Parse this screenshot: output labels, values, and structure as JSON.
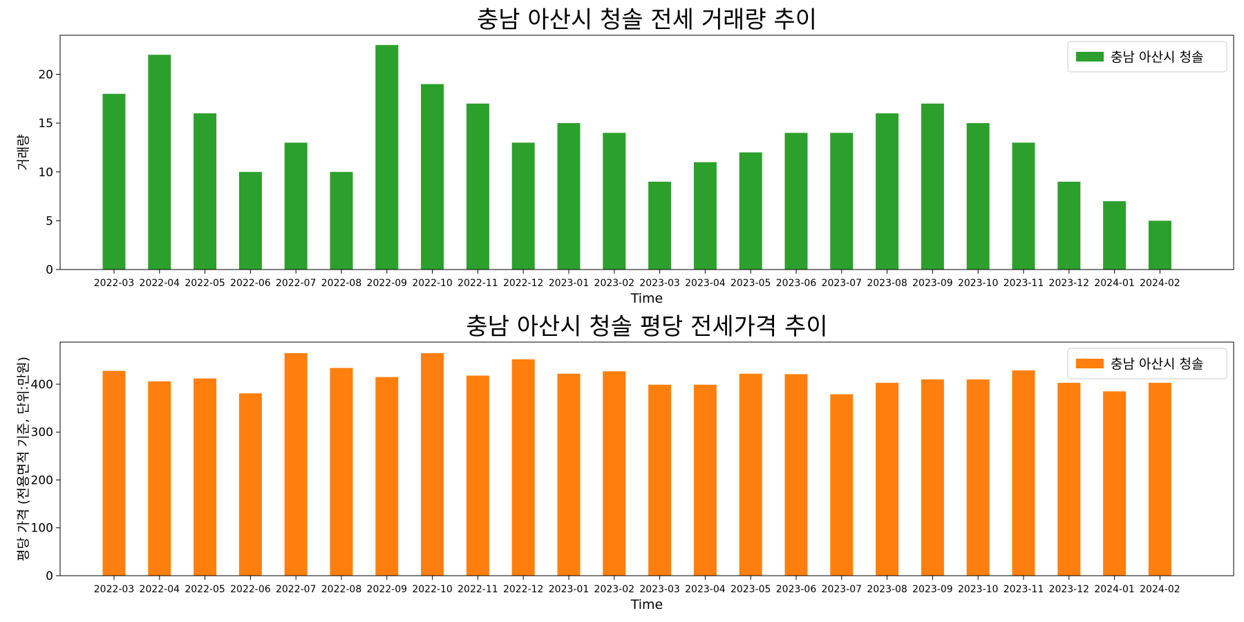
{
  "chart_data": [
    {
      "type": "bar",
      "title": "충남 아산시 청솔 전세 거래량 추이",
      "xlabel": "Time",
      "ylabel": "거래량",
      "categories": [
        "2022-03",
        "2022-04",
        "2022-05",
        "2022-06",
        "2022-07",
        "2022-08",
        "2022-09",
        "2022-10",
        "2022-11",
        "2022-12",
        "2023-01",
        "2023-02",
        "2023-03",
        "2023-04",
        "2023-05",
        "2023-06",
        "2023-07",
        "2023-08",
        "2023-09",
        "2023-10",
        "2023-11",
        "2023-12",
        "2024-01",
        "2024-02"
      ],
      "series": [
        {
          "name": "충남 아산시 청솔",
          "color": "#2ca02c",
          "values": [
            18,
            22,
            16,
            10,
            13,
            10,
            23,
            19,
            17,
            13,
            15,
            14,
            9,
            11,
            12,
            14,
            14,
            16,
            17,
            15,
            13,
            9,
            7,
            5
          ]
        }
      ],
      "ylim": [
        0,
        24
      ],
      "yticks": [
        0,
        5,
        10,
        15,
        20
      ],
      "legend": "top-right",
      "grid": false
    },
    {
      "type": "bar",
      "title": "충남 아산시 청솔 평당 전세가격 추이",
      "xlabel": "Time",
      "ylabel": "평당 가격 (전용면적 기준, 단위:만원)",
      "categories": [
        "2022-03",
        "2022-04",
        "2022-05",
        "2022-06",
        "2022-07",
        "2022-08",
        "2022-09",
        "2022-10",
        "2022-11",
        "2022-12",
        "2023-01",
        "2023-02",
        "2023-03",
        "2023-04",
        "2023-05",
        "2023-06",
        "2023-07",
        "2023-08",
        "2023-09",
        "2023-10",
        "2023-11",
        "2023-12",
        "2024-01",
        "2024-02"
      ],
      "series": [
        {
          "name": "충남 아산시 청솔",
          "color": "#ff7f0e",
          "values": [
            428,
            406,
            412,
            381,
            465,
            434,
            415,
            465,
            418,
            452,
            422,
            427,
            399,
            399,
            422,
            421,
            379,
            403,
            410,
            410,
            429,
            403,
            385,
            403
          ]
        }
      ],
      "ylim": [
        0,
        488
      ],
      "yticks": [
        0,
        100,
        200,
        300,
        400
      ],
      "legend": "top-right",
      "grid": false
    }
  ]
}
